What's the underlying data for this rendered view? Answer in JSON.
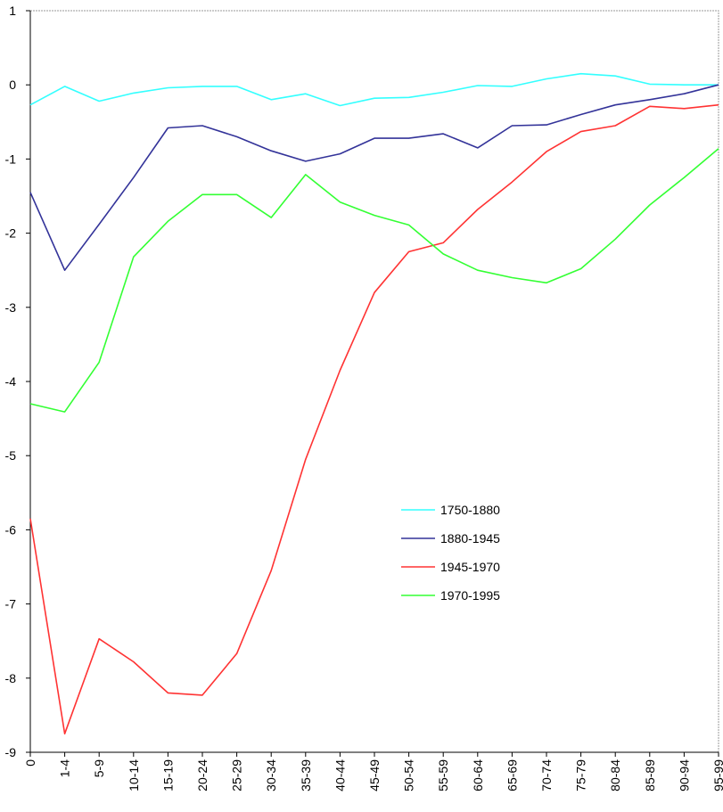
{
  "chart_data": {
    "type": "line",
    "title": "",
    "xlabel": "",
    "ylabel": "",
    "ylim": [
      -9,
      1
    ],
    "y_ticks": [
      1,
      0,
      -1,
      -2,
      -3,
      -4,
      -5,
      -6,
      -7,
      -8,
      -9
    ],
    "grid": false,
    "legend_position": "center-right",
    "categories": [
      "0",
      "1-4",
      "5-9",
      "10-14",
      "15-19",
      "20-24",
      "25-29",
      "30-34",
      "35-39",
      "40-44",
      "45-49",
      "50-54",
      "55-59",
      "60-64",
      "65-69",
      "70-74",
      "75-79",
      "80-84",
      "85-89",
      "90-94",
      "95-99"
    ],
    "series": [
      {
        "name": "1750-1880",
        "color": "#33ffff",
        "values": [
          -0.27,
          -0.02,
          -0.22,
          -0.11,
          -0.04,
          -0.02,
          -0.02,
          -0.2,
          -0.12,
          -0.28,
          -0.18,
          -0.17,
          -0.1,
          -0.01,
          -0.02,
          0.08,
          0.15,
          0.12,
          0.01,
          0.0,
          0.0
        ]
      },
      {
        "name": "1880-1945",
        "color": "#333399",
        "values": [
          -1.45,
          -2.5,
          -1.88,
          -1.25,
          -0.58,
          -0.55,
          -0.7,
          -0.89,
          -1.03,
          -0.93,
          -0.72,
          -0.72,
          -0.66,
          -0.85,
          -0.55,
          -0.54,
          -0.4,
          -0.27,
          -0.2,
          -0.12,
          0.0
        ]
      },
      {
        "name": "1945-1970",
        "color": "#ff3333",
        "values": [
          -5.85,
          -8.75,
          -7.47,
          -7.78,
          -8.2,
          -8.23,
          -7.67,
          -6.55,
          -5.05,
          -3.85,
          -2.8,
          -2.25,
          -2.13,
          -1.68,
          -1.31,
          -0.9,
          -0.63,
          -0.55,
          -0.29,
          -0.32,
          -0.27
        ]
      },
      {
        "name": "1970-1995",
        "color": "#33ff33",
        "values": [
          -4.3,
          -4.41,
          -3.74,
          -2.32,
          -1.84,
          -1.48,
          -1.48,
          -1.79,
          -1.21,
          -1.58,
          -1.76,
          -1.89,
          -2.28,
          -2.5,
          -2.6,
          -2.67,
          -2.48,
          -2.08,
          -1.62,
          -1.25,
          -0.86
        ]
      }
    ]
  }
}
